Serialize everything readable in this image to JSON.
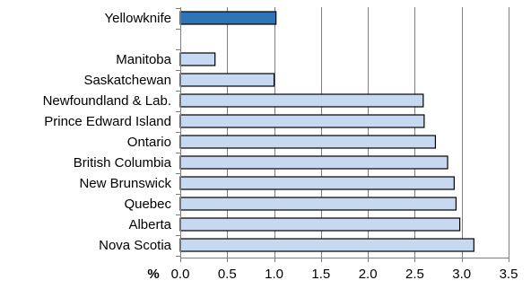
{
  "chart_data": {
    "type": "bar",
    "orientation": "horizontal",
    "categories": [
      "Yellowknife",
      "",
      "Manitoba",
      "Saskatchewan",
      "Newfoundland & Lab.",
      "Prince Edward Island",
      "Ontario",
      "British Columbia",
      "New Brunswick",
      "Quebec",
      "Alberta",
      "Nova Scotia"
    ],
    "values": [
      1.02,
      null,
      0.37,
      1.0,
      2.59,
      2.6,
      2.72,
      2.85,
      2.92,
      2.94,
      2.98,
      3.13
    ],
    "highlight_index": 0,
    "xlabel": "%",
    "ylabel": "",
    "title": "",
    "xlim": [
      0.0,
      3.5
    ],
    "xticks": [
      0.0,
      0.5,
      1.0,
      1.5,
      2.0,
      2.5,
      3.0,
      3.5
    ],
    "xtick_labels": [
      "0.0",
      "0.5",
      "1.0",
      "1.5",
      "2.0",
      "2.5",
      "3.0",
      "3.5"
    ],
    "grid": "vertical",
    "legend": "none",
    "colors": {
      "bar_fill": "#c6d9f1",
      "highlight_fill": "#2e75b6",
      "bar_stroke": "#000000",
      "grid": "#7f7f7f",
      "axis": "#7f7f7f"
    }
  }
}
